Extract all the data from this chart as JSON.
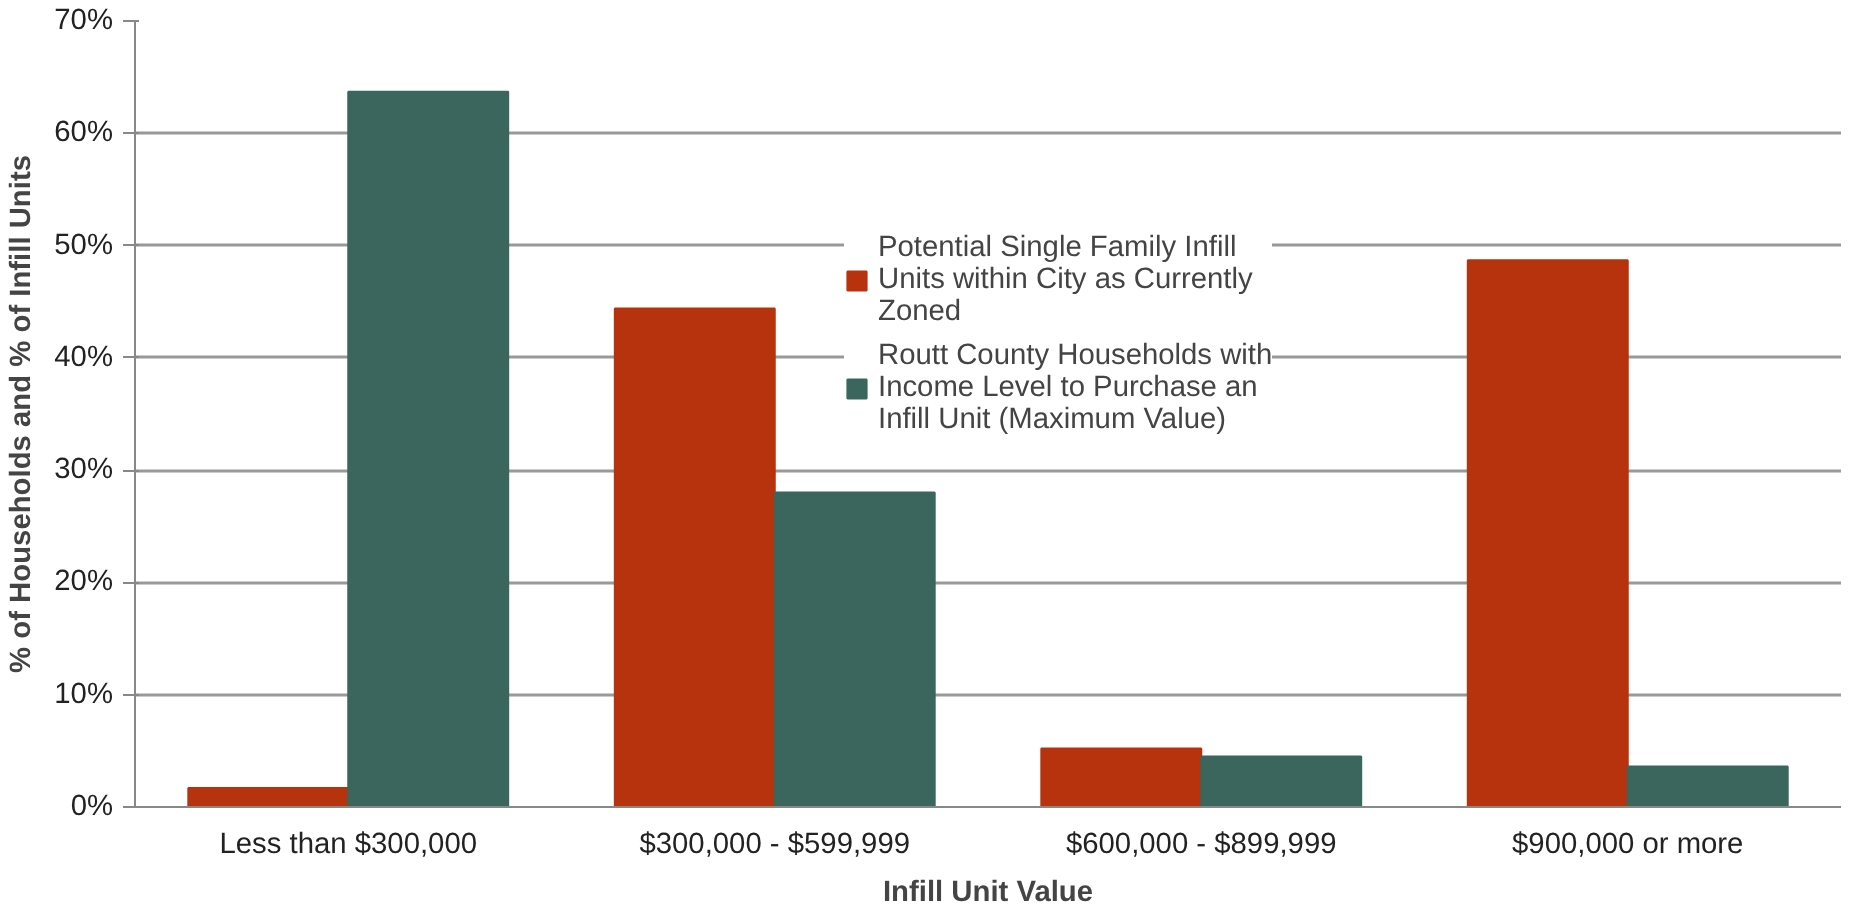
{
  "chart_data": {
    "type": "bar",
    "xlabel": "Infill Unit Value",
    "ylabel": "% of Households and % of Infill Units",
    "categories": [
      "Less than $300,000",
      "$300,000 - $599,999",
      "$600,000 - $899,999",
      "$900,000 or more"
    ],
    "series": [
      {
        "name": "Potential Single Family Infill Units within City as Currently Zoned",
        "color": "#b7330d",
        "values": [
          1.7,
          44.4,
          5.2,
          48.7
        ]
      },
      {
        "name": "Routt County Households with Income Level to Purchase an Infill Unit (Maximum Value)",
        "color": "#3a665e",
        "values": [
          63.7,
          28.0,
          4.5,
          3.6
        ]
      }
    ],
    "ylim": [
      0,
      70
    ],
    "yticks": [
      {
        "value": 0,
        "label": "0%"
      },
      {
        "value": 10,
        "label": "10%"
      },
      {
        "value": 20,
        "label": "20%"
      },
      {
        "value": 30,
        "label": "30%"
      },
      {
        "value": 40,
        "label": "40%"
      },
      {
        "value": 50,
        "label": "50%"
      },
      {
        "value": 60,
        "label": "60%"
      },
      {
        "value": 70,
        "label": "70%"
      }
    ],
    "grid": "y",
    "legend": "top"
  }
}
